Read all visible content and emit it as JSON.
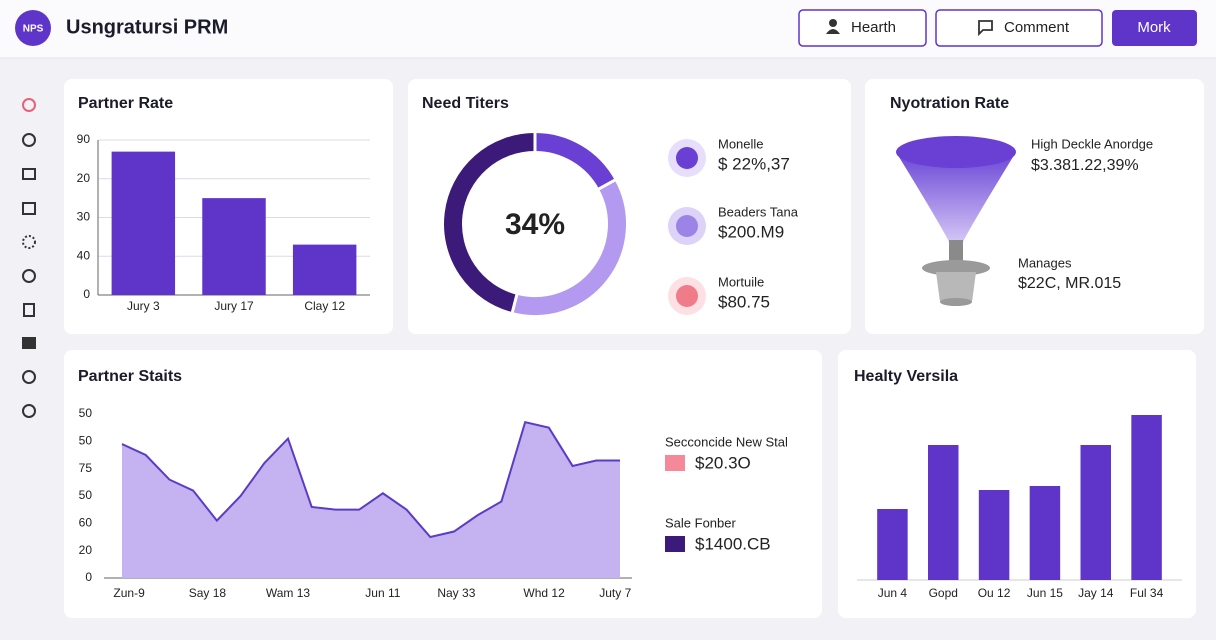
{
  "header": {
    "logo": "NPS",
    "title": "Usngratursi PRM",
    "buttons": [
      "Hearth",
      "Comment",
      "Mork"
    ]
  },
  "chart_data": [
    {
      "type": "bar",
      "title": "Partner Rate",
      "categories": [
        "Jury 3",
        "Jury 17",
        "Clay 12"
      ],
      "values": [
        37,
        25,
        13
      ],
      "color": "#5f35c9",
      "ylim": [
        0,
        40
      ],
      "yticks": [
        0,
        {
          "value": 10,
          "label": "40"
        },
        {
          "value": 20,
          "label": "30"
        },
        {
          "value": 30,
          "label": "20"
        },
        {
          "value": 40,
          "label": "90"
        }
      ],
      "grid": true
    },
    {
      "type": "pie",
      "title": "Need Titers",
      "center_label": "34%",
      "values": [
        17,
        37,
        46
      ],
      "colors": [
        "#6a3fd4",
        "#b39af0",
        "#3c1a7a"
      ],
      "items": [
        {
          "name": "Monelle",
          "value": "$ 22%,37"
        },
        {
          "name": "Beaders Tana",
          "value": "$200.M9"
        },
        {
          "name": "Mortuile",
          "value": "$80.75"
        }
      ]
    },
    {
      "type": "area",
      "title": "Partner Staits",
      "x": [
        0,
        1,
        2,
        3,
        4,
        5,
        6,
        7,
        8,
        9,
        10,
        11,
        12,
        13,
        14,
        15,
        16,
        17,
        18,
        19,
        20,
        21
      ],
      "xlim": [
        0,
        21
      ],
      "xticks": [
        {
          "value": 0.3,
          "label": "Zun-9"
        },
        {
          "value": 3.6,
          "label": "Say 18"
        },
        {
          "value": 7,
          "label": "Wam 13"
        },
        {
          "value": 11,
          "label": "Jun 11"
        },
        {
          "value": 14.1,
          "label": "Nay 33"
        },
        {
          "value": 17.8,
          "label": "Whd 12"
        },
        {
          "value": 20.8,
          "label": "Juty 7"
        }
      ],
      "ylim": [
        0,
        60
      ],
      "yticks": [
        0,
        {
          "value": 10,
          "label": "20"
        },
        {
          "value": 20,
          "label": "60"
        },
        {
          "value": 30,
          "label": "50"
        },
        {
          "value": 40,
          "label": "75"
        },
        {
          "value": 50,
          "label": "50"
        },
        {
          "value": 60,
          "label": "50"
        }
      ],
      "series": [
        {
          "color": "#c4b3f0",
          "values": [
            49,
            45,
            36,
            32,
            21,
            30,
            42,
            51,
            26,
            25,
            25,
            31,
            25,
            15,
            17,
            23,
            28,
            57,
            55,
            41,
            43,
            43
          ]
        }
      ],
      "items": [
        {
          "name": "Secconcide New Stal",
          "value": "$20.3O",
          "color": "#f4899a"
        },
        {
          "name": "Sale Fonber",
          "value": "$1400.CB",
          "color": "#3c1a7a"
        }
      ]
    },
    {
      "type": "bar",
      "title": "Healty Versila",
      "categories": [
        "Jun 4",
        "Gopd",
        "Ou 12",
        "Jun 15",
        "Jay 14",
        "Ful 34"
      ],
      "values": [
        71,
        135,
        90,
        94,
        135,
        165
      ],
      "color": "#5f35c9",
      "ylim": [
        0,
        180
      ],
      "grid": false
    }
  ],
  "funnel": {
    "title": "Nyotration Rate",
    "items": [
      {
        "name": "High Deckle Anordge",
        "value": "$3.381.22,39%"
      },
      {
        "name": "Manages",
        "value": "$22C, MR.015"
      }
    ]
  }
}
